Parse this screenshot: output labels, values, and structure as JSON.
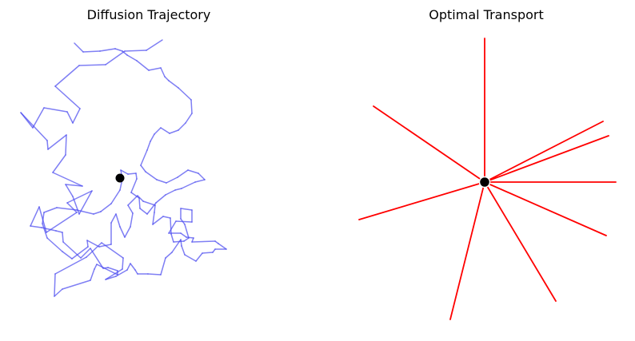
{
  "chart_data": [
    {
      "type": "line",
      "title": "Diffusion Trajectory",
      "xlabel": "",
      "ylabel": "",
      "axes_visible": false,
      "grid": false,
      "xlim": [
        0,
        320
      ],
      "ylim": [
        0,
        360
      ],
      "line_color": "#4848f0",
      "line_opacity": 0.7,
      "marker_color": "#000000",
      "start_point": {
        "x": 124,
        "y": 185
      },
      "path": [
        [
          177,
          358
        ],
        [
          157,
          345
        ],
        [
          130,
          344
        ],
        [
          106,
          327
        ],
        [
          73,
          326
        ],
        [
          43,
          300
        ],
        [
          74,
          272
        ],
        [
          65,
          254
        ],
        [
          58,
          268
        ],
        [
          29,
          273
        ],
        [
          15,
          248
        ],
        [
          0,
          267
        ],
        [
          33,
          232
        ],
        [
          34,
          221
        ],
        [
          57,
          239
        ],
        [
          56,
          214
        ],
        [
          40,
          192
        ],
        [
          77,
          175
        ],
        [
          56,
          177
        ],
        [
          65,
          162
        ],
        [
          73,
          140
        ],
        [
          89,
          169
        ],
        [
          58,
          154
        ],
        [
          70,
          142
        ],
        [
          32,
          117
        ],
        [
          23,
          149
        ],
        [
          12,
          125
        ],
        [
          26,
          123
        ],
        [
          44,
          119
        ],
        [
          52,
          117
        ],
        [
          53,
          105
        ],
        [
          75,
          85
        ],
        [
          87,
          97
        ],
        [
          103,
          72
        ],
        [
          109,
          73
        ],
        [
          121,
          69
        ],
        [
          121,
          64
        ],
        [
          95,
          77
        ],
        [
          92,
          71
        ],
        [
          87,
          57
        ],
        [
          52,
          46
        ],
        [
          42,
          37
        ],
        [
          43,
          65
        ],
        [
          82,
          86
        ],
        [
          101,
          104
        ],
        [
          128,
          85
        ],
        [
          127,
          71
        ],
        [
          106,
          58
        ],
        [
          119,
          62
        ],
        [
          133,
          70
        ],
        [
          137,
          78
        ],
        [
          143,
          70
        ],
        [
          146,
          65
        ],
        [
          159,
          65
        ],
        [
          175,
          64
        ],
        [
          181,
          85
        ],
        [
          189,
          92
        ],
        [
          200,
          108
        ],
        [
          201,
          100
        ],
        [
          205,
          89
        ],
        [
          219,
          81
        ],
        [
          227,
          91
        ],
        [
          240,
          92
        ],
        [
          243,
          96
        ],
        [
          257,
          96
        ],
        [
          247,
          103
        ],
        [
          243,
          106
        ],
        [
          214,
          105
        ],
        [
          216,
          110
        ],
        [
          207,
          111
        ],
        [
          200,
          116
        ],
        [
          185,
          116
        ],
        [
          194,
          131
        ],
        [
          214,
          130
        ],
        [
          214,
          145
        ],
        [
          200,
          147
        ],
        [
          200,
          134
        ],
        [
          205,
          127
        ],
        [
          210,
          110
        ],
        [
          204,
          106
        ],
        [
          191,
          105
        ],
        [
          188,
          115
        ],
        [
          187,
          135
        ],
        [
          178,
          137
        ],
        [
          165,
          127
        ],
        [
          167,
          142
        ],
        [
          168,
          151
        ],
        [
          153,
          156
        ],
        [
          146,
          163
        ],
        [
          134,
          151
        ],
        [
          140,
          141
        ],
        [
          137,
          124
        ],
        [
          130,
          111
        ],
        [
          124,
          124
        ],
        [
          119,
          140
        ],
        [
          113,
          129
        ],
        [
          113,
          102
        ],
        [
          98,
          99
        ],
        [
          83,
          107
        ],
        [
          84,
          99
        ],
        [
          64,
          84
        ],
        [
          52,
          93
        ],
        [
          33,
          110
        ],
        [
          27,
          128
        ],
        [
          29,
          142
        ],
        [
          45,
          148
        ],
        [
          70,
          145
        ],
        [
          91,
          140
        ],
        [
          100,
          143
        ],
        [
          113,
          153
        ],
        [
          124,
          170
        ],
        [
          127,
          184
        ],
        [
          125,
          195
        ],
        [
          134,
          190
        ],
        [
          144,
          191
        ],
        [
          145,
          184
        ],
        [
          138,
          167
        ],
        [
          148,
          160
        ],
        [
          149,
          147
        ],
        [
          158,
          140
        ],
        [
          169,
          154
        ],
        [
          181,
          164
        ],
        [
          193,
          170
        ],
        [
          201,
          172
        ],
        [
          218,
          180
        ],
        [
          230,
          183
        ],
        [
          222,
          191
        ],
        [
          209,
          195
        ],
        [
          196,
          186
        ],
        [
          182,
          179
        ],
        [
          170,
          183
        ],
        [
          156,
          193
        ],
        [
          150,
          201
        ],
        [
          158,
          220
        ],
        [
          162,
          231
        ],
        [
          167,
          240
        ],
        [
          175,
          248
        ],
        [
          186,
          241
        ],
        [
          197,
          245
        ],
        [
          206,
          254
        ],
        [
          214,
          266
        ],
        [
          213,
          283
        ],
        [
          197,
          298
        ],
        [
          185,
          307
        ],
        [
          180,
          312
        ],
        [
          175,
          323
        ],
        [
          160,
          320
        ],
        [
          145,
          332
        ],
        [
          133,
          339
        ],
        [
          127,
          344
        ],
        [
          118,
          347
        ],
        [
          99,
          344
        ],
        [
          78,
          343
        ],
        [
          67,
          354
        ]
      ]
    },
    {
      "type": "line",
      "title": "Optimal Transport",
      "xlabel": "",
      "ylabel": "",
      "axes_visible": false,
      "grid": false,
      "xlim": [
        -200,
        200
      ],
      "ylim": [
        -200,
        200
      ],
      "line_color": "#ff0000",
      "marker_color": "#000000",
      "center": {
        "x": 0,
        "y": 0
      },
      "rays": [
        {
          "x": 0,
          "y": 180
        },
        {
          "x": -139,
          "y": 95
        },
        {
          "x": 148,
          "y": 76
        },
        {
          "x": 155,
          "y": 58
        },
        {
          "x": 164,
          "y": 0
        },
        {
          "x": 152,
          "y": -67
        },
        {
          "x": 89,
          "y": -149
        },
        {
          "x": -43,
          "y": -172
        },
        {
          "x": -157,
          "y": -47
        }
      ]
    }
  ]
}
